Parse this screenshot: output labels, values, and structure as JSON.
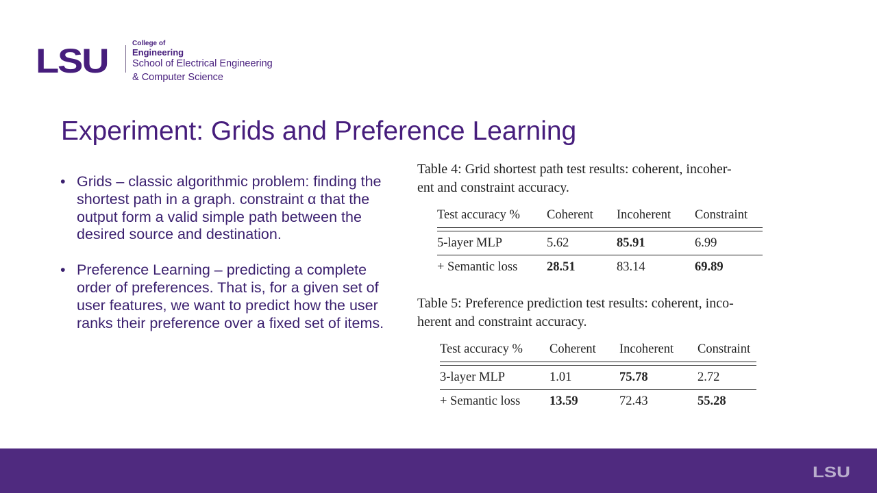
{
  "header": {
    "logo_mark": "LSU",
    "college_of": "College of",
    "engineering": "Engineering",
    "school_line1": "School of Electrical Engineering",
    "school_line2": "& Computer Science"
  },
  "slide": {
    "title": "Experiment: Grids and Preference Learning",
    "bullets": [
      "Grids – classic algorithmic problem: finding the shortest path in a graph. constraint α that the output form a valid simple path between the desired source and destination.",
      "Preference Learning – predicting a complete order of preferences. That is, for a given set of user features, we want to predict how the user ranks their preference over a fixed set of items."
    ],
    "bullet_symbol": "•"
  },
  "tables": [
    {
      "caption": "Table 4: Grid shortest path test results: coherent, incoherent and constraint accuracy.",
      "caption_line1": "Table 4:  Grid shortest path test results:  coherent, incoher-",
      "caption_line2": "ent and constraint accuracy.",
      "headers": [
        "Test accuracy %",
        "Coherent",
        "Incoherent",
        "Constraint"
      ],
      "rows": [
        [
          "5-layer MLP",
          "5.62",
          "85.91",
          "6.99"
        ],
        [
          "+ Semantic loss",
          "28.51",
          "83.14",
          "69.89"
        ]
      ],
      "bold": [
        [
          false,
          false,
          true,
          false
        ],
        [
          false,
          true,
          false,
          true
        ]
      ]
    },
    {
      "caption": "Table 5: Preference prediction test results: coherent, incoherent and constraint accuracy.",
      "caption_line1": "Table 5:  Preference prediction test results:  coherent, inco-",
      "caption_line2": "herent and constraint accuracy.",
      "headers": [
        "Test accuracy %",
        "Coherent",
        "Incoherent",
        "Constraint"
      ],
      "rows": [
        [
          "3-layer MLP",
          "1.01",
          "75.78",
          "2.72"
        ],
        [
          "+ Semantic loss",
          "13.59",
          "72.43",
          "55.28"
        ]
      ],
      "bold": [
        [
          false,
          false,
          true,
          false
        ],
        [
          false,
          true,
          false,
          true
        ]
      ]
    }
  ],
  "footer": {
    "logo_mark": "LSU",
    "color": "#4f2a7f"
  },
  "colors": {
    "brand_purple": "#461d7c",
    "text_purple": "#3a1f6e"
  }
}
